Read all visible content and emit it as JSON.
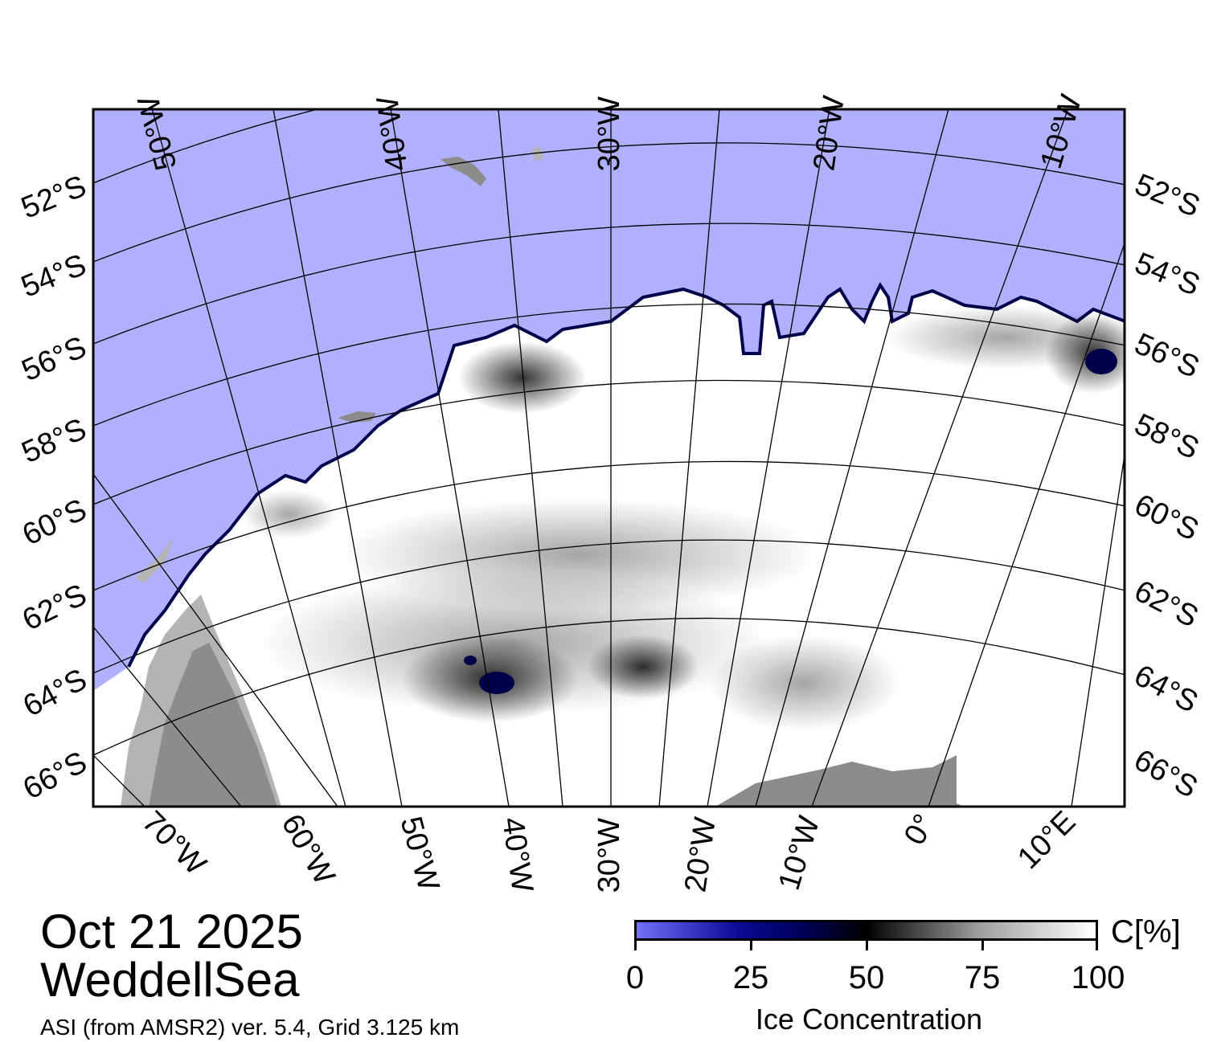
{
  "title": {
    "date": "Oct 21 2025",
    "region": "WeddellSea",
    "product": "ASI (from AMSR2) ver. 5.4,  Grid 3.125 km"
  },
  "map": {
    "projection": "polar stereographic (south)",
    "longitude_range": [
      "70°W",
      "10°E"
    ],
    "latitude_range": [
      "52°S",
      "66°S"
    ],
    "colors": {
      "open_water": "#b0b0fc",
      "ice_full": "#ffffff",
      "land": "#8c8c8c",
      "land_light": "#b4b4b4",
      "low_ice": "#00004a",
      "frame": "#000000"
    },
    "top_lon_labels": [
      "50°W",
      "40°W",
      "30°W",
      "20°W",
      "10°W"
    ],
    "bottom_lon_labels": [
      "70°W",
      "60°W",
      "50°W",
      "40°W",
      "30°W",
      "20°W",
      "10°W",
      "0°",
      "10°E"
    ],
    "left_lat_labels": [
      "52°S",
      "54°S",
      "56°S",
      "58°S",
      "60°S",
      "62°S",
      "64°S",
      "66°S"
    ],
    "right_lat_labels": [
      "52°S",
      "54°S",
      "56°S",
      "58°S",
      "60°S",
      "62°S",
      "64°S",
      "66°S"
    ]
  },
  "colorbar": {
    "title": "Ice Concentration",
    "unit": "C[%]",
    "ticks": [
      "0",
      "25",
      "50",
      "75",
      "100"
    ],
    "tick_values": [
      0,
      25,
      50,
      75,
      100
    ],
    "gradient_stops": [
      {
        "value": 0,
        "color": "#7070f8"
      },
      {
        "value": 22,
        "color": "#0a0a96"
      },
      {
        "value": 36,
        "color": "#00005a"
      },
      {
        "value": 50,
        "color": "#000000"
      },
      {
        "value": 75,
        "color": "#a0a0a0"
      },
      {
        "value": 100,
        "color": "#ffffff"
      }
    ]
  }
}
